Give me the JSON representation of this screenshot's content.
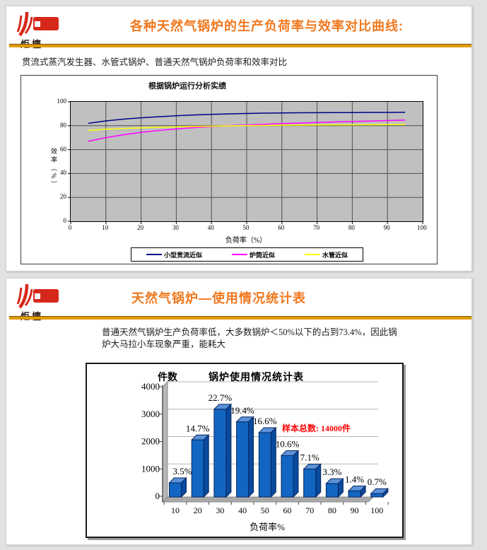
{
  "colors": {
    "slide_title": "#F0781E",
    "header_rule": "#E09A00",
    "logo_red": "#D6281A",
    "annotation_red": "#FF0000",
    "bar_front": "#1266C2",
    "bar_top": "#5B92D8",
    "bar_side": "#0A4A9E",
    "plot_bg": "#C0C0C0"
  },
  "slide1": {
    "logo_text": "炬檀",
    "title": "各种天然气锅炉的生产负荷率与效率对比曲线:",
    "body": "贯流式蒸汽发生器、水管式锅炉、普通天然气锅炉负荷率和效率对比"
  },
  "slide2": {
    "logo_text": "炬檀",
    "title": "天然气锅炉—使用情况统计表",
    "body_line1": "普通天然气锅炉生产负荷率低，大多数锅炉＜50%以下的占到73.4%，因此锅",
    "body_line2": "炉大马拉小车现象严重，能耗大"
  },
  "chart_data": [
    {
      "type": "line",
      "title": "根据锅炉运行分析实绩",
      "xlabel": "负荷率（%）",
      "ylabel": "效率（%）",
      "xlim": [
        0,
        100
      ],
      "ylim": [
        0,
        100
      ],
      "x_ticks": [
        0,
        10,
        20,
        30,
        40,
        50,
        60,
        70,
        80,
        90,
        100
      ],
      "y_ticks": [
        0,
        20,
        40,
        60,
        80,
        100
      ],
      "grid": true,
      "legend_position": "bottom",
      "x": [
        5,
        10,
        15,
        20,
        25,
        30,
        35,
        40,
        45,
        50,
        55,
        60,
        65,
        70,
        75,
        80,
        85,
        90,
        95
      ],
      "series": [
        {
          "name": "小型贯流近似",
          "color": "#00008B",
          "values": [
            82,
            84,
            85.5,
            86.6,
            87.5,
            88.3,
            89,
            89.5,
            89.9,
            90.2,
            90.5,
            90.7,
            90.8,
            90.9,
            91,
            91,
            91.1,
            91.1,
            91.2
          ]
        },
        {
          "name": "炉筒近似",
          "color": "#FF00FF",
          "values": [
            67,
            70,
            72.4,
            74.4,
            76,
            77.3,
            78.4,
            79.3,
            80,
            80.6,
            81.2,
            81.7,
            82.2,
            82.7,
            83.1,
            83.5,
            83.9,
            84.3,
            84.7
          ]
        },
        {
          "name": "水管近似",
          "color": "#FFFF00",
          "values": [
            76,
            77,
            77.7,
            78.2,
            78.7,
            79,
            79.4,
            79.6,
            79.9,
            80.1,
            80.2,
            80.4,
            80.5,
            80.6,
            80.7,
            80.7,
            80.8,
            80.9,
            81
          ]
        }
      ]
    },
    {
      "type": "bar",
      "title": "锅炉使用情况统计表",
      "xlabel": "负荷率%",
      "ylabel": "件数",
      "categories": [
        10,
        20,
        30,
        40,
        50,
        60,
        70,
        80,
        90,
        100
      ],
      "values": [
        490,
        2058,
        3178,
        2716,
        2324,
        1484,
        994,
        462,
        196,
        98
      ],
      "percent_labels": [
        "3.5%",
        "14.7%",
        "22.7%",
        "19.4%",
        "16.6%",
        "10.6%",
        "7.1%",
        "3.3%",
        "1.4%",
        "0.7%"
      ],
      "annotation": "样本总数: 14000件",
      "ylim": [
        0,
        4000
      ],
      "y_ticks": [
        0,
        1000,
        2000,
        3000,
        4000
      ],
      "effect": "3d"
    }
  ]
}
